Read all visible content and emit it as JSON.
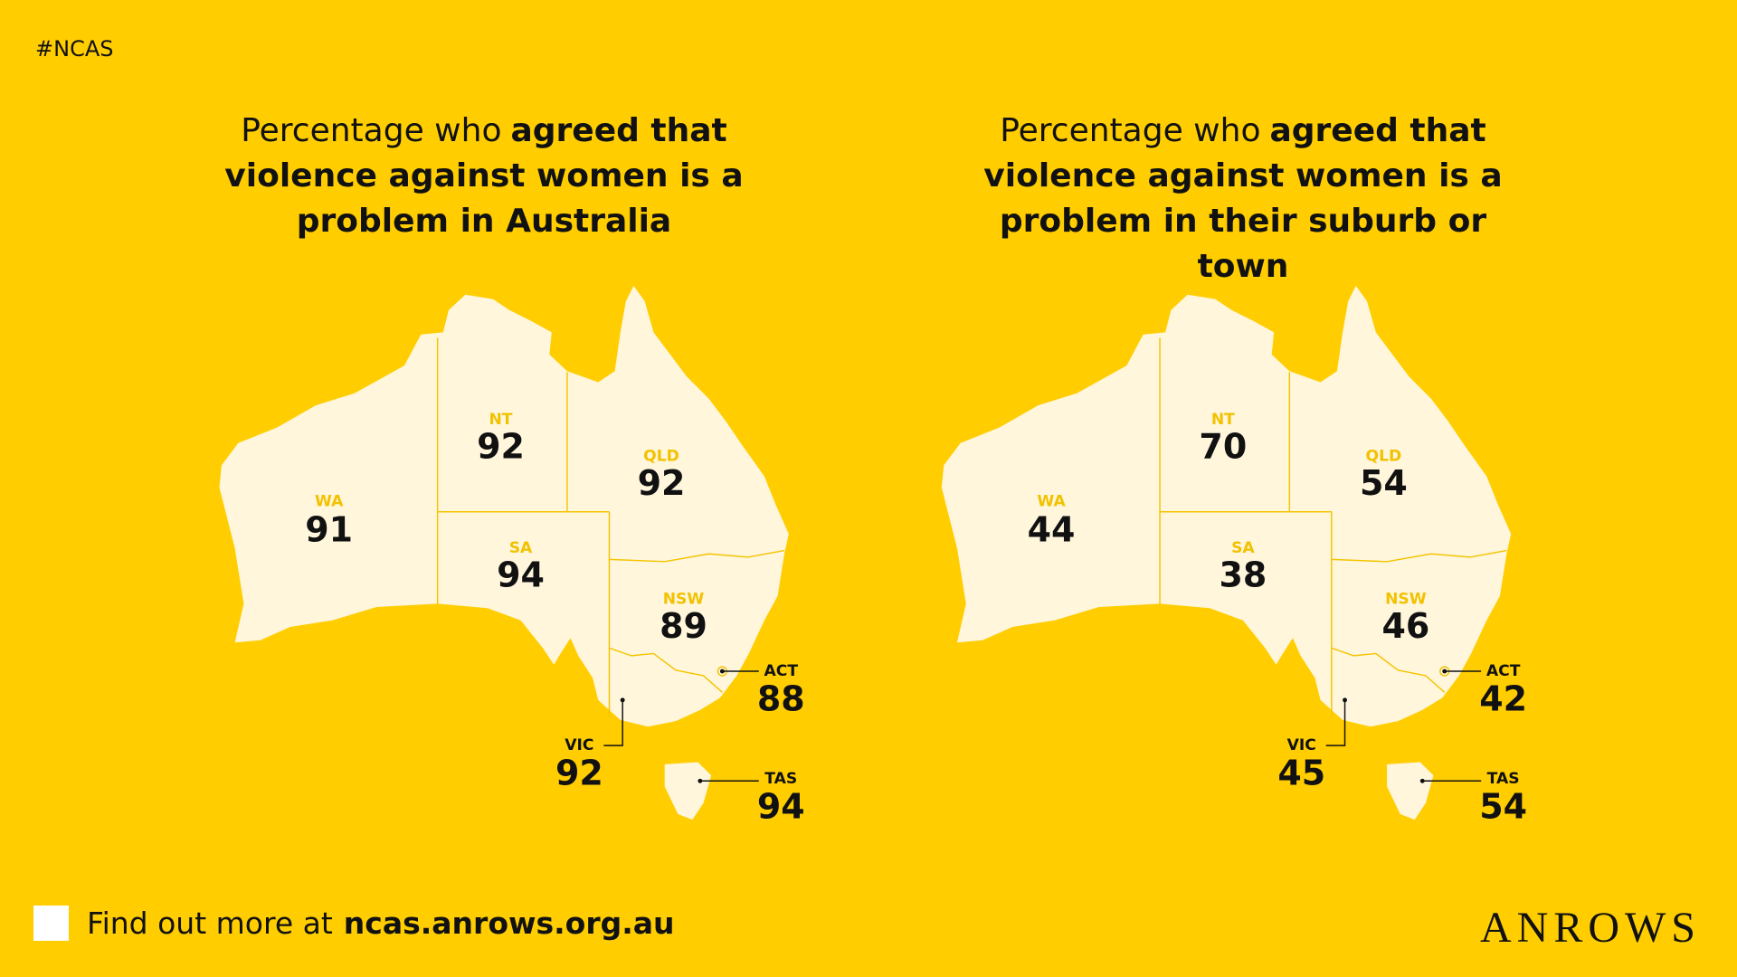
{
  "tag": "#NCAS",
  "maps": [
    {
      "title": {
        "regular": "Percentage who",
        "bold": "agreed that violence against women is a problem in Australia"
      },
      "regions": [
        {
          "name": "WA",
          "value": 91
        },
        {
          "name": "NT",
          "value": 92
        },
        {
          "name": "QLD",
          "value": 92
        },
        {
          "name": "SA",
          "value": 94
        },
        {
          "name": "NSW",
          "value": 89
        },
        {
          "name": "ACT",
          "value": 88
        },
        {
          "name": "VIC",
          "value": 92
        },
        {
          "name": "TAS",
          "value": 94
        }
      ]
    },
    {
      "title": {
        "regular": "Percentage who",
        "bold": "agreed that violence against women is a problem in their suburb or town"
      },
      "regions": [
        {
          "name": "WA",
          "value": 44
        },
        {
          "name": "NT",
          "value": 70
        },
        {
          "name": "QLD",
          "value": 54
        },
        {
          "name": "SA",
          "value": 38
        },
        {
          "name": "NSW",
          "value": 46
        },
        {
          "name": "ACT",
          "value": 42
        },
        {
          "name": "VIC",
          "value": 45
        },
        {
          "name": "TAS",
          "value": 54
        }
      ]
    }
  ],
  "footer": {
    "text": "Find out more at",
    "link": "ncas.anrows.org.au"
  },
  "logo": "ANROWS"
}
